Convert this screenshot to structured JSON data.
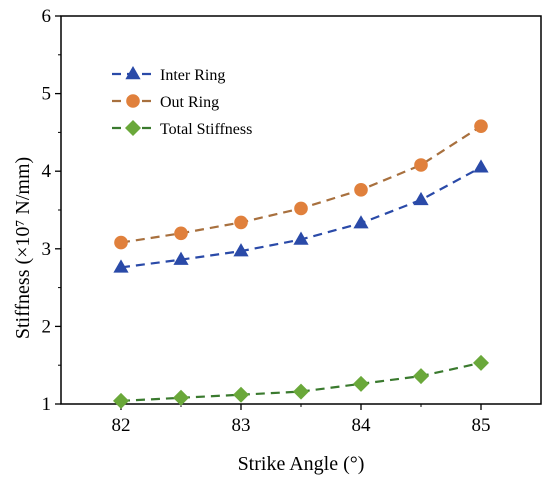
{
  "chart_data": {
    "type": "line",
    "xlabel": "Strike Angle (°)",
    "ylabel": "Stiffness (×10⁷ N/mm)",
    "xlim": [
      81.5,
      85.5
    ],
    "ylim": [
      1,
      6
    ],
    "xticks": [
      82,
      83,
      84,
      85
    ],
    "yticks": [
      1,
      2,
      3,
      4,
      5,
      6
    ],
    "grid": false,
    "legend_position": "top-left",
    "x": [
      82,
      82.5,
      83,
      83.5,
      84,
      84.5,
      85
    ],
    "series": [
      {
        "name": "Inter Ring",
        "marker": "triangle",
        "color": "#2a4aa8",
        "line_color": "#2a4aa8",
        "values": [
          2.76,
          2.86,
          2.97,
          3.12,
          3.33,
          3.63,
          4.05
        ]
      },
      {
        "name": "Out Ring",
        "marker": "circle",
        "color": "#e0803c",
        "line_color": "#a8703e",
        "values": [
          3.08,
          3.2,
          3.34,
          3.52,
          3.76,
          4.08,
          4.58
        ]
      },
      {
        "name": "Total Stiffness",
        "marker": "diamond",
        "color": "#6aa83a",
        "line_color": "#3a7a2e",
        "values": [
          1.04,
          1.08,
          1.12,
          1.16,
          1.26,
          1.36,
          1.53
        ]
      }
    ]
  }
}
